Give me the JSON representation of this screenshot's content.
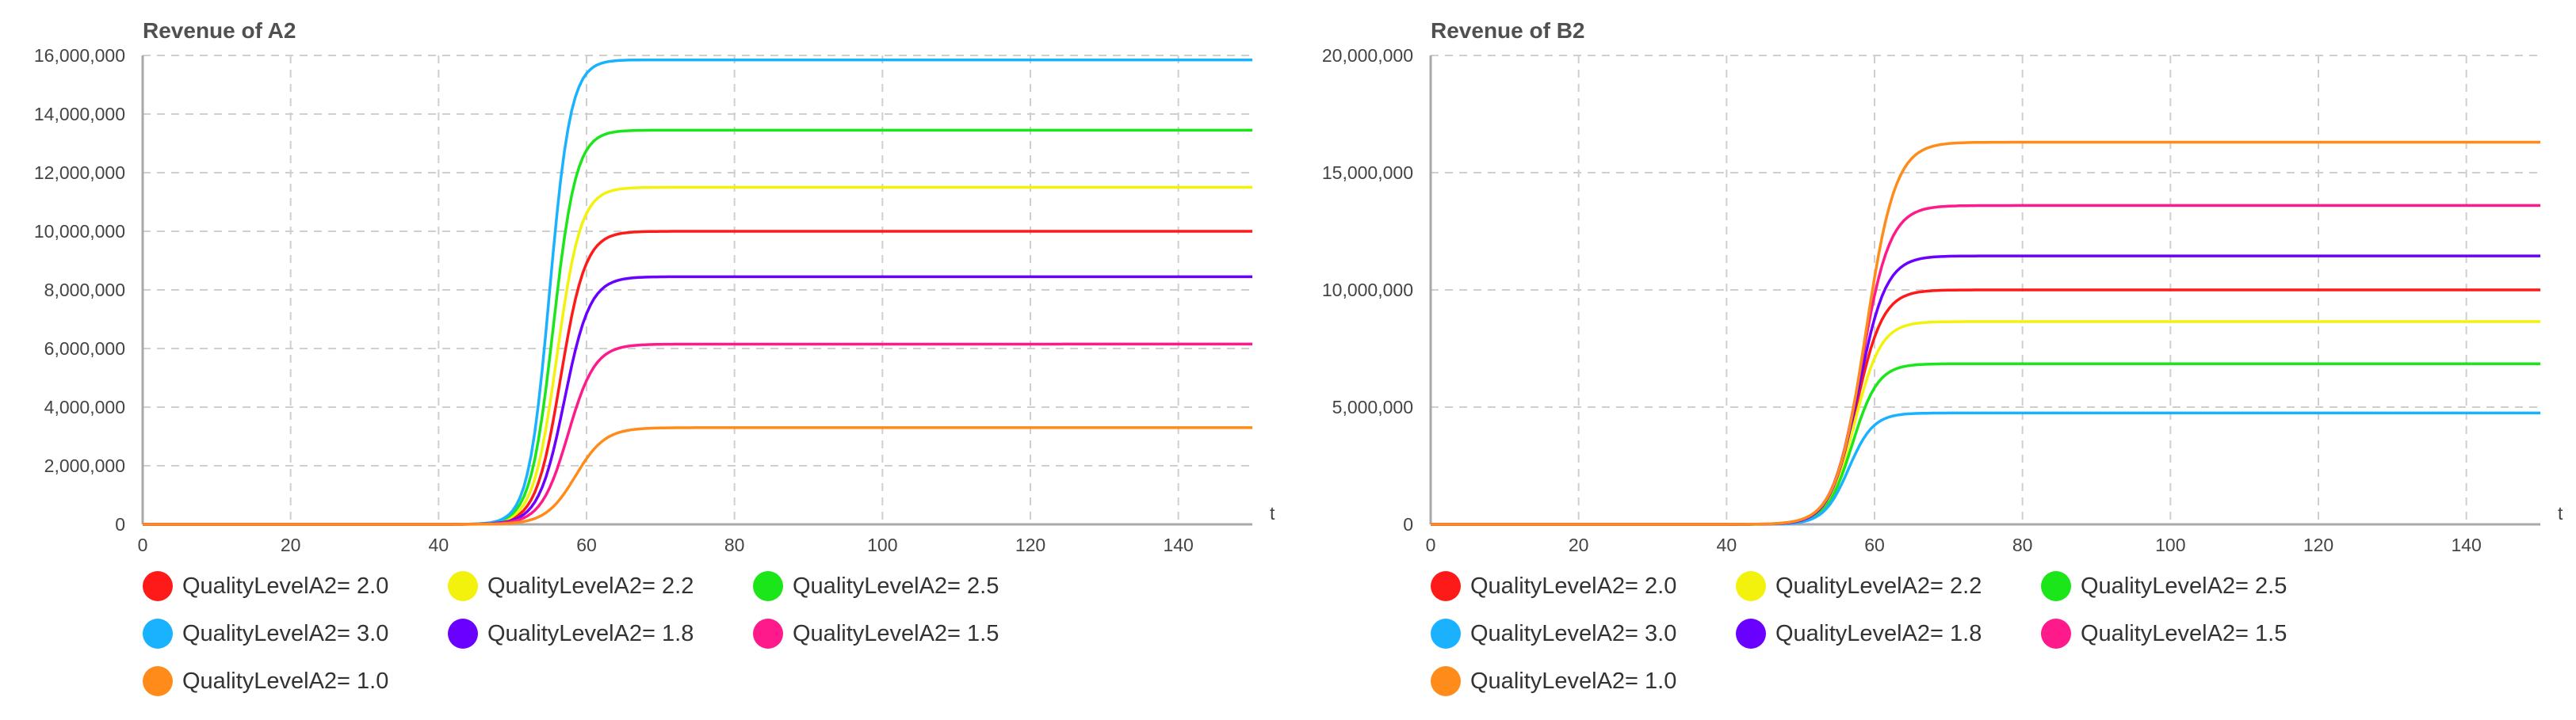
{
  "chart_data": [
    {
      "type": "line",
      "title": "Revenue of A2",
      "xlabel": "t",
      "ylabel": "",
      "xlim": [
        0,
        150
      ],
      "ylim": [
        0,
        16000000
      ],
      "x_ticks": [
        0,
        20,
        40,
        60,
        80,
        100,
        120,
        140
      ],
      "y_ticks": [
        0,
        2000000,
        4000000,
        6000000,
        8000000,
        10000000,
        12000000,
        14000000,
        16000000
      ],
      "y_tick_labels": [
        "0",
        "2,000,000",
        "4,000,000",
        "6,000,000",
        "8,000,000",
        "10,000,000",
        "12,000,000",
        "14,000,000",
        "16,000,000"
      ],
      "grid": true,
      "legend_position": "bottom",
      "series": [
        {
          "name": "QualityLevelA2= 2.0",
          "color": "#ff1a1a",
          "plateau": 10000000,
          "midpoint": 56.5,
          "rate": 0.6
        },
        {
          "name": "QualityLevelA2= 2.2",
          "color": "#f2f20d",
          "plateau": 11500000,
          "midpoint": 56.0,
          "rate": 0.62
        },
        {
          "name": "QualityLevelA2= 2.5",
          "color": "#1ae61a",
          "plateau": 13450000,
          "midpoint": 55.5,
          "rate": 0.65
        },
        {
          "name": "QualityLevelA2= 3.0",
          "color": "#1ab2ff",
          "plateau": 15850000,
          "midpoint": 55.0,
          "rate": 0.7
        },
        {
          "name": "QualityLevelA2= 1.8",
          "color": "#6a00ff",
          "plateau": 8450000,
          "midpoint": 57.0,
          "rate": 0.58
        },
        {
          "name": "QualityLevelA2= 1.5",
          "color": "#ff1a8c",
          "plateau": 6150000,
          "midpoint": 57.5,
          "rate": 0.55
        },
        {
          "name": "QualityLevelA2= 1.0",
          "color": "#ff8c1a",
          "plateau": 3300000,
          "midpoint": 58.5,
          "rate": 0.5
        }
      ]
    },
    {
      "type": "line",
      "title": "Revenue of B2",
      "xlabel": "t",
      "ylabel": "",
      "xlim": [
        0,
        150
      ],
      "ylim": [
        0,
        20000000
      ],
      "x_ticks": [
        0,
        20,
        40,
        60,
        80,
        100,
        120,
        140
      ],
      "y_ticks": [
        0,
        5000000,
        10000000,
        15000000,
        20000000
      ],
      "y_tick_labels": [
        "0",
        "5,000,000",
        "10,000,000",
        "15,000,000",
        "20,000,000"
      ],
      "grid": true,
      "legend_position": "bottom",
      "series": [
        {
          "name": "QualityLevelA2= 2.0",
          "color": "#ff1a1a",
          "plateau": 10000000,
          "midpoint": 57.5,
          "rate": 0.55
        },
        {
          "name": "QualityLevelA2= 2.2",
          "color": "#f2f20d",
          "plateau": 8650000,
          "midpoint": 57.3,
          "rate": 0.56
        },
        {
          "name": "QualityLevelA2= 2.5",
          "color": "#1ae61a",
          "plateau": 6850000,
          "midpoint": 57.0,
          "rate": 0.58
        },
        {
          "name": "QualityLevelA2= 3.0",
          "color": "#1ab2ff",
          "plateau": 4750000,
          "midpoint": 56.5,
          "rate": 0.6
        },
        {
          "name": "QualityLevelA2= 1.8",
          "color": "#6a00ff",
          "plateau": 11450000,
          "midpoint": 57.8,
          "rate": 0.54
        },
        {
          "name": "QualityLevelA2= 1.5",
          "color": "#ff1a8c",
          "plateau": 13600000,
          "midpoint": 58.2,
          "rate": 0.52
        },
        {
          "name": "QualityLevelA2= 1.0",
          "color": "#ff8c1a",
          "plateau": 16300000,
          "midpoint": 58.8,
          "rate": 0.5
        }
      ]
    }
  ]
}
